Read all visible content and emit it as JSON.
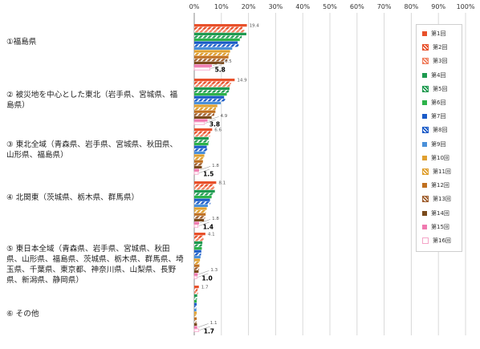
{
  "chart_data": {
    "type": "bar",
    "orientation": "horizontal",
    "xlim": [
      0,
      100
    ],
    "x_tick_labels": [
      "0%",
      "10%",
      "20%",
      "30%",
      "40%",
      "50%",
      "60%",
      "70%",
      "80%",
      "90%",
      "100%"
    ],
    "grid": true,
    "legend_position": "right",
    "categories": [
      "①福島県",
      "② 被災地を中心とした東北（岩手県、宮城県、福島県）",
      "③ 東北全域（青森県、岩手県、宮城県、秋田県、山形県、福島県）",
      "④ 北関東（茨城県、栃木県、群馬県）",
      "⑤ 東日本全域（青森県、岩手県、宮城県、秋田県、山形県、福島県、茨城県、栃木県、群馬県、埼玉県、千葉県、東京都、神奈川県、山梨県、長野県、新潟県、静岡県）",
      "⑥ その他"
    ],
    "series": [
      {
        "name": "第1回",
        "color": "#e8502a",
        "pattern": "solid",
        "values": [
          19.4,
          14.9,
          6.6,
          8.1,
          4.1,
          1.7
        ]
      },
      {
        "name": "第2回",
        "color": "#e8502a",
        "pattern": "hatch",
        "values": [
          17.8,
          13.5,
          6.0,
          7.2,
          3.2,
          1.2
        ]
      },
      {
        "name": "第3回",
        "color": "#f08060",
        "pattern": "hatch",
        "values": [
          18.5,
          13.2,
          5.8,
          7.5,
          3.5,
          1.4
        ]
      },
      {
        "name": "第4回",
        "color": "#1e9a50",
        "pattern": "solid",
        "values": [
          19.2,
          13.0,
          5.3,
          7.6,
          3.0,
          1.1
        ]
      },
      {
        "name": "第5回",
        "color": "#1e9a50",
        "pattern": "hatch",
        "values": [
          17.5,
          12.8,
          5.4,
          7.0,
          2.9,
          1.0
        ]
      },
      {
        "name": "第6回",
        "color": "#2db34a",
        "pattern": "solid",
        "values": [
          16.8,
          12.0,
          5.2,
          6.4,
          2.8,
          0.9
        ]
      },
      {
        "name": "第7回",
        "color": "#1a5bc8",
        "pattern": "solid",
        "values": [
          16.0,
          11.0,
          4.6,
          5.8,
          2.6,
          0.9
        ]
      },
      {
        "name": "第8回",
        "color": "#1a5bc8",
        "pattern": "hatch",
        "values": [
          16.4,
          11.4,
          4.8,
          6.0,
          2.5,
          0.8
        ]
      },
      {
        "name": "第9回",
        "color": "#4a90d9",
        "pattern": "solid",
        "values": [
          14.0,
          9.8,
          4.0,
          5.0,
          2.3,
          0.8
        ]
      },
      {
        "name": "第10回",
        "color": "#e0a030",
        "pattern": "solid",
        "values": [
          13.2,
          8.5,
          3.7,
          4.6,
          2.1,
          0.9
        ]
      },
      {
        "name": "第11回",
        "color": "#e0a030",
        "pattern": "hatch",
        "values": [
          12.8,
          8.0,
          3.4,
          4.3,
          2.0,
          0.8
        ]
      },
      {
        "name": "第12回",
        "color": "#c07020",
        "pattern": "solid",
        "values": [
          12.6,
          7.8,
          3.2,
          4.2,
          1.9,
          0.9
        ]
      },
      {
        "name": "第13回",
        "color": "#a06030",
        "pattern": "hatch",
        "values": [
          12.2,
          7.4,
          3.0,
          4.0,
          1.8,
          0.8
        ]
      },
      {
        "name": "第14回",
        "color": "#7a4a1c",
        "pattern": "solid",
        "values": [
          11.0,
          6.4,
          2.8,
          3.6,
          1.6,
          1.0
        ]
      },
      {
        "name": "第15回",
        "color": "#f07ab0",
        "pattern": "solid",
        "values": [
          6.5,
          4.9,
          1.8,
          1.8,
          1.3,
          1.1
        ]
      },
      {
        "name": "第16回",
        "color": "#f5a5c8",
        "pattern": "outline",
        "values": [
          5.8,
          3.8,
          1.5,
          1.4,
          1.0,
          1.7
        ]
      }
    ]
  }
}
